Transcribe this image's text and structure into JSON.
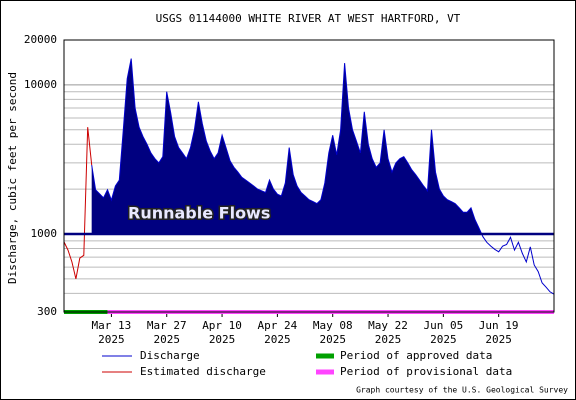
{
  "chart_data": {
    "type": "line",
    "title": "USGS 01144000 WHITE RIVER AT WEST HARTFORD, VT",
    "ylabel": "Discharge, cubic feet per second",
    "credit": "Graph courtesy of the U.S. Geological Survey",
    "log_y": true,
    "grid": true,
    "ylim": [
      300,
      20000
    ],
    "yticks": [
      300,
      1000,
      10000,
      20000
    ],
    "minor_yticks": [
      400,
      500,
      600,
      700,
      800,
      900,
      2000,
      3000,
      4000,
      5000,
      6000,
      7000,
      8000,
      9000
    ],
    "xlim": [
      "2025-03-01",
      "2025-07-03"
    ],
    "xticks": [
      {
        "value": "2025-03-13",
        "label": "Mar 13",
        "year": "2025"
      },
      {
        "value": "2025-03-27",
        "label": "Mar 27",
        "year": "2025"
      },
      {
        "value": "2025-04-10",
        "label": "Apr 10",
        "year": "2025"
      },
      {
        "value": "2025-04-24",
        "label": "Apr 24",
        "year": "2025"
      },
      {
        "value": "2025-05-08",
        "label": "May 08",
        "year": "2025"
      },
      {
        "value": "2025-05-22",
        "label": "May 22",
        "year": "2025"
      },
      {
        "value": "2025-06-05",
        "label": "Jun 05",
        "year": "2025"
      },
      {
        "value": "2025-06-19",
        "label": "Jun 19",
        "year": "2025"
      }
    ],
    "threshold": {
      "value": 1000,
      "label": "Runnable Flows",
      "color": "#000080"
    },
    "x": [
      "2025-03-01",
      "2025-03-02",
      "2025-03-03",
      "2025-03-04",
      "2025-03-05",
      "2025-03-06",
      "2025-03-07",
      "2025-03-08",
      "2025-03-09",
      "2025-03-10",
      "2025-03-11",
      "2025-03-12",
      "2025-03-13",
      "2025-03-14",
      "2025-03-15",
      "2025-03-16",
      "2025-03-17",
      "2025-03-18",
      "2025-03-19",
      "2025-03-20",
      "2025-03-21",
      "2025-03-22",
      "2025-03-23",
      "2025-03-24",
      "2025-03-25",
      "2025-03-26",
      "2025-03-27",
      "2025-03-28",
      "2025-03-29",
      "2025-03-30",
      "2025-03-31",
      "2025-04-01",
      "2025-04-02",
      "2025-04-03",
      "2025-04-04",
      "2025-04-05",
      "2025-04-06",
      "2025-04-07",
      "2025-04-08",
      "2025-04-09",
      "2025-04-10",
      "2025-04-11",
      "2025-04-12",
      "2025-04-13",
      "2025-04-14",
      "2025-04-15",
      "2025-04-16",
      "2025-04-17",
      "2025-04-18",
      "2025-04-19",
      "2025-04-20",
      "2025-04-21",
      "2025-04-22",
      "2025-04-23",
      "2025-04-24",
      "2025-04-25",
      "2025-04-26",
      "2025-04-27",
      "2025-04-28",
      "2025-04-29",
      "2025-04-30",
      "2025-05-01",
      "2025-05-02",
      "2025-05-03",
      "2025-05-04",
      "2025-05-05",
      "2025-05-06",
      "2025-05-07",
      "2025-05-08",
      "2025-05-09",
      "2025-05-10",
      "2025-05-11",
      "2025-05-12",
      "2025-05-13",
      "2025-05-14",
      "2025-05-15",
      "2025-05-16",
      "2025-05-17",
      "2025-05-18",
      "2025-05-19",
      "2025-05-20",
      "2025-05-21",
      "2025-05-22",
      "2025-05-23",
      "2025-05-24",
      "2025-05-25",
      "2025-05-26",
      "2025-05-27",
      "2025-05-28",
      "2025-05-29",
      "2025-05-30",
      "2025-05-31",
      "2025-06-01",
      "2025-06-02",
      "2025-06-03",
      "2025-06-04",
      "2025-06-05",
      "2025-06-06",
      "2025-06-07",
      "2025-06-08",
      "2025-06-09",
      "2025-06-10",
      "2025-06-11",
      "2025-06-12",
      "2025-06-13",
      "2025-06-14",
      "2025-06-15",
      "2025-06-16",
      "2025-06-17",
      "2025-06-18",
      "2025-06-19",
      "2025-06-20",
      "2025-06-21",
      "2025-06-22",
      "2025-06-23",
      "2025-06-24",
      "2025-06-25",
      "2025-06-26",
      "2025-06-27",
      "2025-06-28",
      "2025-06-29",
      "2025-06-30",
      "2025-07-01",
      "2025-07-02",
      "2025-07-03"
    ],
    "series": [
      {
        "name": "Discharge",
        "color": "#0000cc",
        "fill": "#000080",
        "values": [
          null,
          null,
          null,
          null,
          null,
          null,
          null,
          2900,
          1980,
          1860,
          1750,
          1980,
          1690,
          2100,
          2300,
          5000,
          11000,
          15000,
          7000,
          5200,
          4500,
          4000,
          3500,
          3200,
          3000,
          3300,
          9000,
          6500,
          4500,
          3800,
          3500,
          3200,
          3800,
          5000,
          7700,
          5500,
          4200,
          3600,
          3200,
          3500,
          4600,
          3800,
          3100,
          2800,
          2600,
          2400,
          2300,
          2200,
          2100,
          2000,
          1950,
          1900,
          2300,
          2000,
          1850,
          1800,
          2200,
          3800,
          2500,
          2100,
          1900,
          1800,
          1700,
          1650,
          1600,
          1700,
          2200,
          3500,
          4600,
          3400,
          5000,
          14000,
          7000,
          5000,
          4200,
          3500,
          6600,
          4000,
          3200,
          2800,
          3000,
          5000,
          3200,
          2600,
          3000,
          3200,
          3300,
          3000,
          2700,
          2500,
          2300,
          2100,
          1950,
          5000,
          2600,
          2000,
          1800,
          1700,
          1650,
          1600,
          1500,
          1400,
          1400,
          1500,
          1250,
          1100,
          960,
          880,
          830,
          790,
          760,
          830,
          850,
          950,
          780,
          880,
          740,
          650,
          820,
          620,
          560,
          470,
          440,
          410,
          395
        ]
      },
      {
        "name": "Estimated discharge",
        "color": "#cc0000",
        "values": [
          885,
          780,
          650,
          500,
          690,
          720,
          5200,
          2900,
          null,
          null,
          null,
          null,
          null,
          null,
          null,
          null,
          null,
          null,
          null,
          null,
          null,
          null,
          null,
          null,
          null,
          null,
          null,
          null,
          null,
          null,
          null,
          null,
          null,
          null,
          null,
          null,
          null,
          null,
          null,
          null,
          null,
          null,
          null,
          null,
          null,
          null,
          null,
          null,
          null,
          null,
          null,
          null,
          null,
          null,
          null,
          null,
          null,
          null,
          null,
          null,
          null,
          null,
          null,
          null,
          null,
          null,
          null,
          null,
          null,
          null,
          null,
          null,
          null,
          null,
          null,
          null,
          null,
          null,
          null,
          null,
          null,
          null,
          null,
          null,
          null,
          null,
          null,
          null,
          null,
          null,
          null,
          null,
          null,
          null,
          null,
          null,
          null,
          null,
          null,
          null,
          null,
          null,
          null,
          null,
          null,
          null,
          null,
          null,
          null,
          null,
          null,
          null,
          null,
          null,
          null,
          null,
          null,
          null,
          null,
          null,
          null,
          null,
          null,
          null,
          null
        ]
      }
    ],
    "periods": [
      {
        "name": "Period of approved data",
        "color": "#00a000",
        "start": "2025-03-01",
        "end": "2025-03-12"
      },
      {
        "name": "Period of provisional data",
        "color": "#ff44ff",
        "start": "2025-03-12",
        "end": "2025-07-03"
      }
    ]
  }
}
